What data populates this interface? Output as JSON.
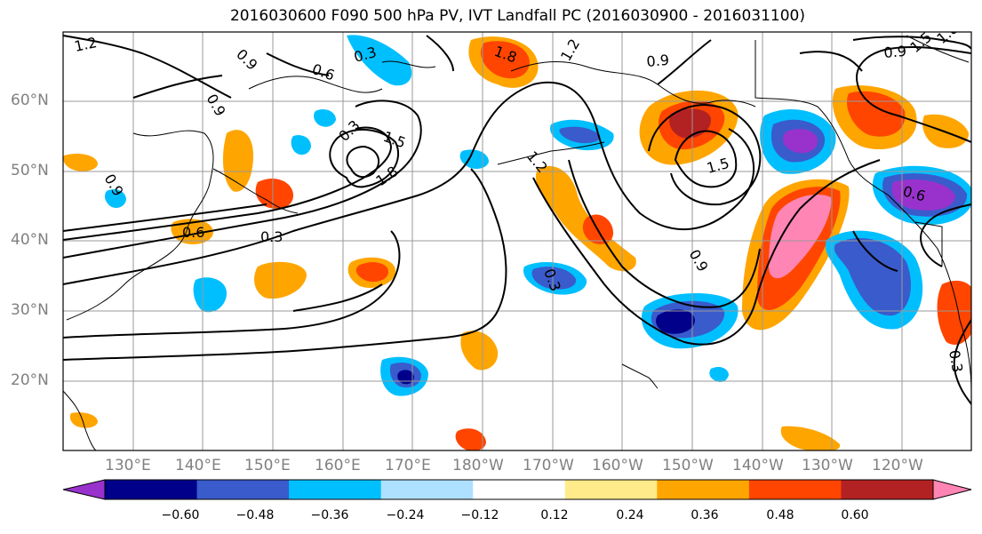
{
  "title": "2016030600 F090 500 hPa PV, IVT Landfall PC (2016030900 - 2016031100)",
  "lon_labels": [
    "130°E",
    "140°E",
    "150°E",
    "160°E",
    "170°E",
    "180°W",
    "170°W",
    "160°W",
    "150°W",
    "140°W",
    "130°W",
    "120°W"
  ],
  "lat_labels": [
    "60°N",
    "50°N",
    "40°N",
    "30°N",
    "20°N"
  ],
  "colorbar": {
    "ticks": [
      "−0.60",
      "−0.48",
      "−0.36",
      "−0.24",
      "−0.12",
      "0.12",
      "0.24",
      "0.36",
      "0.48",
      "0.60"
    ],
    "colors": [
      "#9932CC",
      "#00008B",
      "#3A5BCB",
      "#00BFFF",
      "#AEE0FF",
      "#FFFFFF",
      "#FFEB8A",
      "#FFA500",
      "#FF4500",
      "#B22222",
      "#FF85B4"
    ]
  },
  "contour_labels": [
    "1.2",
    "0.9",
    "0.6",
    "0.3",
    "0.9",
    "1.8",
    "1.2",
    "0.9",
    "0.9",
    "1.5",
    "1.8",
    "0.9",
    "0.3",
    "1.5",
    "1.8",
    "0.6",
    "0.3",
    "1.2",
    "0.3",
    "1.5",
    "0.6",
    "0.3",
    "0.9"
  ]
}
